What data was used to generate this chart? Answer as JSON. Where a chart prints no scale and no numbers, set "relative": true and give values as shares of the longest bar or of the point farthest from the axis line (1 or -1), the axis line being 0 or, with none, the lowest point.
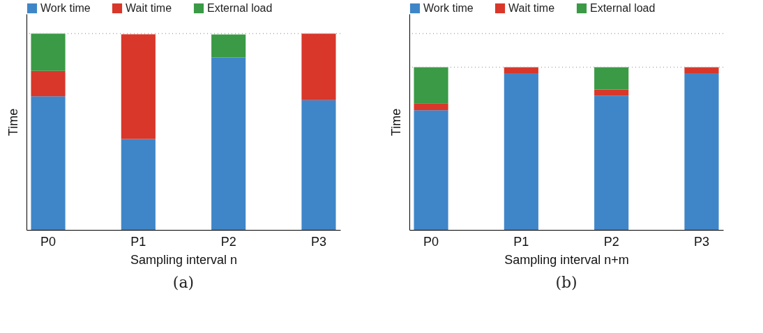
{
  "chart_data": [
    {
      "type": "bar",
      "stacked": true,
      "relative": true,
      "xlabel": "Sampling interval n",
      "ylabel": "Time",
      "legend": "top",
      "categories": [
        "P0",
        "P1",
        "P2",
        "P3"
      ],
      "series": [
        {
          "name": "Work time",
          "color": "#3f86c8",
          "values": [
            0.68,
            0.463,
            0.878,
            0.661
          ]
        },
        {
          "name": "Wait time",
          "color": "#d8372a",
          "values": [
            0.13,
            0.533,
            null,
            0.339
          ]
        },
        {
          "name": "External load",
          "color": "#3a9a45",
          "values": [
            0.19,
            null,
            0.117,
            null
          ]
        }
      ],
      "ref_lines": [
        {
          "axis": "y",
          "value": 1,
          "color": "#aaaaaa",
          "line_style": "dotted"
        }
      ],
      "annotations": [
        "(a)"
      ]
    },
    {
      "type": "bar",
      "stacked": true,
      "relative": true,
      "xlabel": "Sampling interval n+m",
      "ylabel": "Time",
      "legend": "top",
      "categories": [
        "P0",
        "P1",
        "P2",
        "P3"
      ],
      "series": [
        {
          "name": "Work time",
          "color": "#3f86c8",
          "values": [
            0.736,
            0.964,
            0.825,
            0.964
          ]
        },
        {
          "name": "Wait time",
          "color": "#d8372a",
          "values": [
            0.042,
            0.036,
            0.038,
            0.036
          ]
        },
        {
          "name": "External load",
          "color": "#3a9a45",
          "values": [
            0.222,
            null,
            0.137,
            null
          ]
        }
      ],
      "ref_lines": [
        {
          "axis": "y",
          "value": 1.207,
          "color": "#aaaaaa",
          "line_style": "dotted"
        },
        {
          "axis": "y",
          "value": 1,
          "color": "#aaaaaa",
          "line_style": "dotted"
        }
      ],
      "annotations": [
        "(b)"
      ]
    }
  ]
}
